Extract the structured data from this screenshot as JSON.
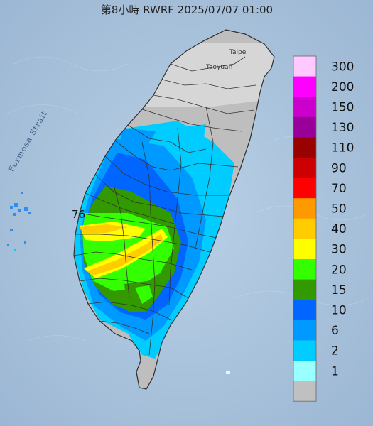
{
  "title": "第8小時  RWRF 2025/07/07 01:00",
  "places": {
    "taipei": "Taipei",
    "taoyuan": "Taoyuan"
  },
  "strait_label": "Formosa Strait",
  "max_value_label": "76",
  "legend": [
    {
      "label": "300",
      "color": "#ffc8ff"
    },
    {
      "label": "200",
      "color": "#ff00ff"
    },
    {
      "label": "150",
      "color": "#cc00cc"
    },
    {
      "label": "130",
      "color": "#990099"
    },
    {
      "label": "110",
      "color": "#990000"
    },
    {
      "label": "90",
      "color": "#cc0000"
    },
    {
      "label": "70",
      "color": "#ff0000"
    },
    {
      "label": "50",
      "color": "#ff9900"
    },
    {
      "label": "40",
      "color": "#ffcc00"
    },
    {
      "label": "30",
      "color": "#ffff00"
    },
    {
      "label": "20",
      "color": "#33ff00"
    },
    {
      "label": "15",
      "color": "#339900"
    },
    {
      "label": "10",
      "color": "#0066ff"
    },
    {
      "label": "6",
      "color": "#0099ff"
    },
    {
      "label": "2",
      "color": "#00ccff"
    },
    {
      "label": "1",
      "color": "#99ffff"
    },
    {
      "label": "",
      "color": "#c0c0c0"
    }
  ]
}
